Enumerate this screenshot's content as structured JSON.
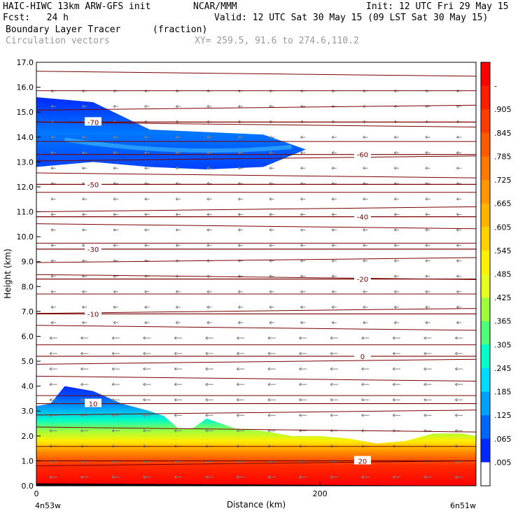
{
  "header": {
    "model": "HAIC-HIWC 13km ARW-GFS init",
    "center": "NCAR/MMM",
    "init": "Init: 12 UTC Fri 29 May 15",
    "fcst": "Fcst:   24 h",
    "valid": "Valid: 12 UTC Sat 30 May 15 (09 LST Sat 30 May 15)",
    "field": "Boundary Layer Tracer",
    "field_units": "(fraction)",
    "overlay": "Circulation vectors",
    "xy": "XY= 259.5, 91.6 to 274.6,110.2"
  },
  "chart_data": {
    "type": "heatmap",
    "xlabel": "Distance (km)",
    "ylabel": "Height (km)",
    "xlim": [
      0,
      310
    ],
    "ylim": [
      0,
      17
    ],
    "x_ticks": [
      "0",
      "200"
    ],
    "x_end_labels": [
      "4n53w",
      "6n51w"
    ],
    "y_ticks": [
      "0.0",
      "1.0",
      "2.0",
      "3.0",
      "4.0",
      "5.0",
      "6.0",
      "7.0",
      "8.0",
      "9.0",
      "10.0",
      "11.0",
      "12.0",
      "13.0",
      "14.0",
      "15.0",
      "16.0",
      "17.0"
    ],
    "colorbar": {
      "labels": [
        "-",
        ".905",
        ".845",
        ".785",
        ".725",
        ".665",
        ".605",
        ".545",
        ".485",
        ".425",
        ".365",
        ".305",
        ".245",
        ".185",
        ".125",
        ".065",
        ".005"
      ],
      "colors": [
        "#ff0000",
        "#ff1e00",
        "#ff3c00",
        "#ff5a00",
        "#ff7800",
        "#ff9600",
        "#ffb400",
        "#ffd200",
        "#fff000",
        "#e6ff1e",
        "#a0ff3c",
        "#50ff78",
        "#00ffc8",
        "#00dcff",
        "#00a0ff",
        "#0064ff",
        "#0028ff",
        "#ffffff"
      ]
    },
    "temperature_contours": [
      {
        "label": "-70",
        "y": 14.6
      },
      {
        "label": "-60",
        "y": 13.3
      },
      {
        "label": "-50",
        "y": 12.1
      },
      {
        "label": "-40",
        "y": 10.8
      },
      {
        "label": "-30",
        "y": 9.5
      },
      {
        "label": "-20",
        "y": 8.3
      },
      {
        "label": "-10",
        "y": 6.9
      },
      {
        "label": "0",
        "y": 5.2
      },
      {
        "label": "10",
        "y": 3.3
      },
      {
        "label": "20",
        "y": 1.0
      }
    ],
    "upper_tracer_layer": {
      "x": [
        0,
        40,
        80,
        120,
        160,
        190
      ],
      "top": [
        15.6,
        15.4,
        14.3,
        14.2,
        14.1,
        13.5
      ],
      "bottom": [
        12.8,
        13.0,
        12.8,
        12.7,
        12.8,
        13.5
      ]
    },
    "boundary_layer_top": {
      "x": [
        0,
        10,
        20,
        40,
        60,
        80,
        90,
        100,
        110,
        120,
        140,
        160,
        180,
        200,
        220,
        240,
        260,
        280,
        300,
        310
      ],
      "top": [
        3.2,
        3.3,
        4.0,
        3.8,
        3.3,
        3.0,
        2.8,
        2.3,
        2.3,
        2.7,
        2.3,
        2.2,
        2.0,
        2.0,
        1.9,
        1.7,
        1.8,
        2.1,
        2.1,
        2.0
      ]
    }
  }
}
